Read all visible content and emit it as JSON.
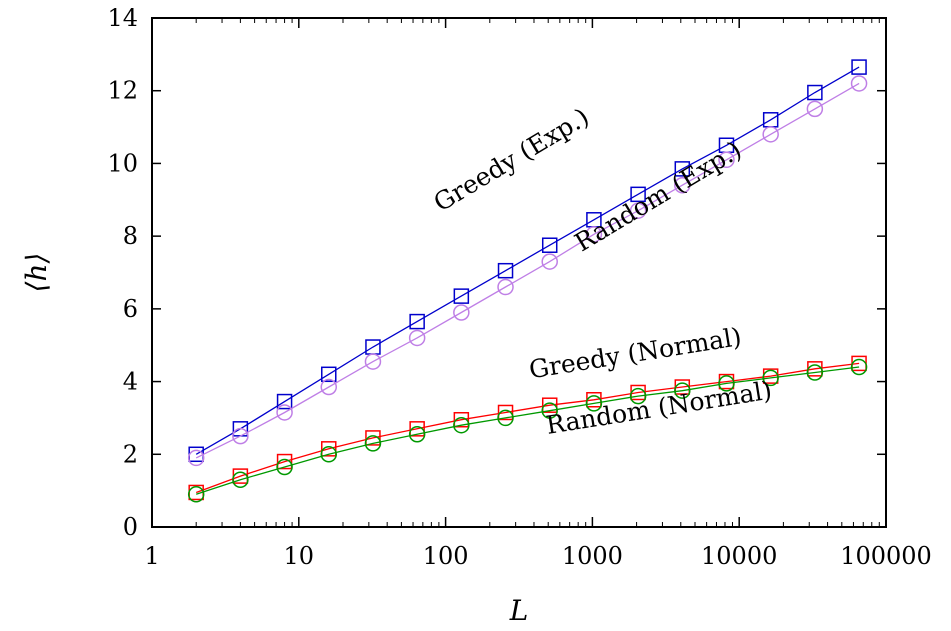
{
  "chart_data": {
    "type": "line",
    "title": "",
    "xlabel": "L",
    "ylabel": "⟨h⟩",
    "xscale": "log",
    "xlim": [
      1,
      100000
    ],
    "ylim": [
      0,
      14
    ],
    "xticks": [
      1,
      10,
      100,
      1000,
      10000,
      100000
    ],
    "xtick_labels": [
      "1",
      "10",
      "100",
      "1000",
      "10000",
      "100000"
    ],
    "yticks": [
      0,
      2,
      4,
      6,
      8,
      10,
      12,
      14
    ],
    "ytick_labels": [
      "0",
      "2",
      "4",
      "6",
      "8",
      "10",
      "12",
      "14"
    ],
    "grid": false,
    "legend": "none",
    "x": [
      2,
      4,
      8,
      16,
      32,
      64,
      128,
      256,
      512,
      1024,
      2048,
      4096,
      8192,
      16384,
      32768,
      65536
    ],
    "series": [
      {
        "name": "Greedy (Exp.)",
        "marker": "square",
        "color": "#0000cc",
        "values": [
          2.0,
          2.7,
          3.45,
          4.2,
          4.95,
          5.65,
          6.35,
          7.05,
          7.75,
          8.45,
          9.15,
          9.85,
          10.5,
          11.2,
          11.95,
          12.65
        ],
        "fit": {
          "from": 2,
          "to": 65536,
          "start": 1.95,
          "end": 12.6
        }
      },
      {
        "name": "Random (Exp.)",
        "marker": "circle",
        "color": "#bf7fe6",
        "values": [
          1.9,
          2.5,
          3.15,
          3.85,
          4.55,
          5.2,
          5.9,
          6.6,
          7.3,
          8.05,
          8.7,
          9.4,
          10.1,
          10.8,
          11.5,
          12.2
        ],
        "fit": {
          "from": 2,
          "to": 65536,
          "start": 1.85,
          "end": 12.15
        }
      },
      {
        "name": "Greedy (Normal)",
        "marker": "square",
        "color": "#ff0000",
        "values": [
          0.95,
          1.4,
          1.8,
          2.15,
          2.45,
          2.7,
          2.95,
          3.15,
          3.35,
          3.5,
          3.7,
          3.85,
          4.0,
          4.15,
          4.35,
          4.5
        ],
        "fit": {
          "from": 2,
          "to": 65536,
          "start": 1.2,
          "end": 4.5
        }
      },
      {
        "name": "Random (Normal)",
        "marker": "circle",
        "color": "#009900",
        "values": [
          0.9,
          1.3,
          1.65,
          2.0,
          2.3,
          2.55,
          2.8,
          3.0,
          3.2,
          3.4,
          3.6,
          3.75,
          3.95,
          4.1,
          4.25,
          4.4
        ],
        "fit": {
          "from": 2,
          "to": 65536,
          "start": 0.85,
          "end": 4.4
        }
      }
    ],
    "annotations": [
      {
        "text": "Greedy (Exp.)",
        "x": 300,
        "y": 9.9,
        "rotate": -31
      },
      {
        "text": "Random (Exp.)",
        "x": 3000,
        "y": 8.9,
        "rotate": -31
      },
      {
        "text": "Greedy (Normal)",
        "x": 2000,
        "y": 4.55,
        "rotate": -9
      },
      {
        "text": "Random (Normal)",
        "x": 2900,
        "y": 3.05,
        "rotate": -9
      }
    ]
  }
}
